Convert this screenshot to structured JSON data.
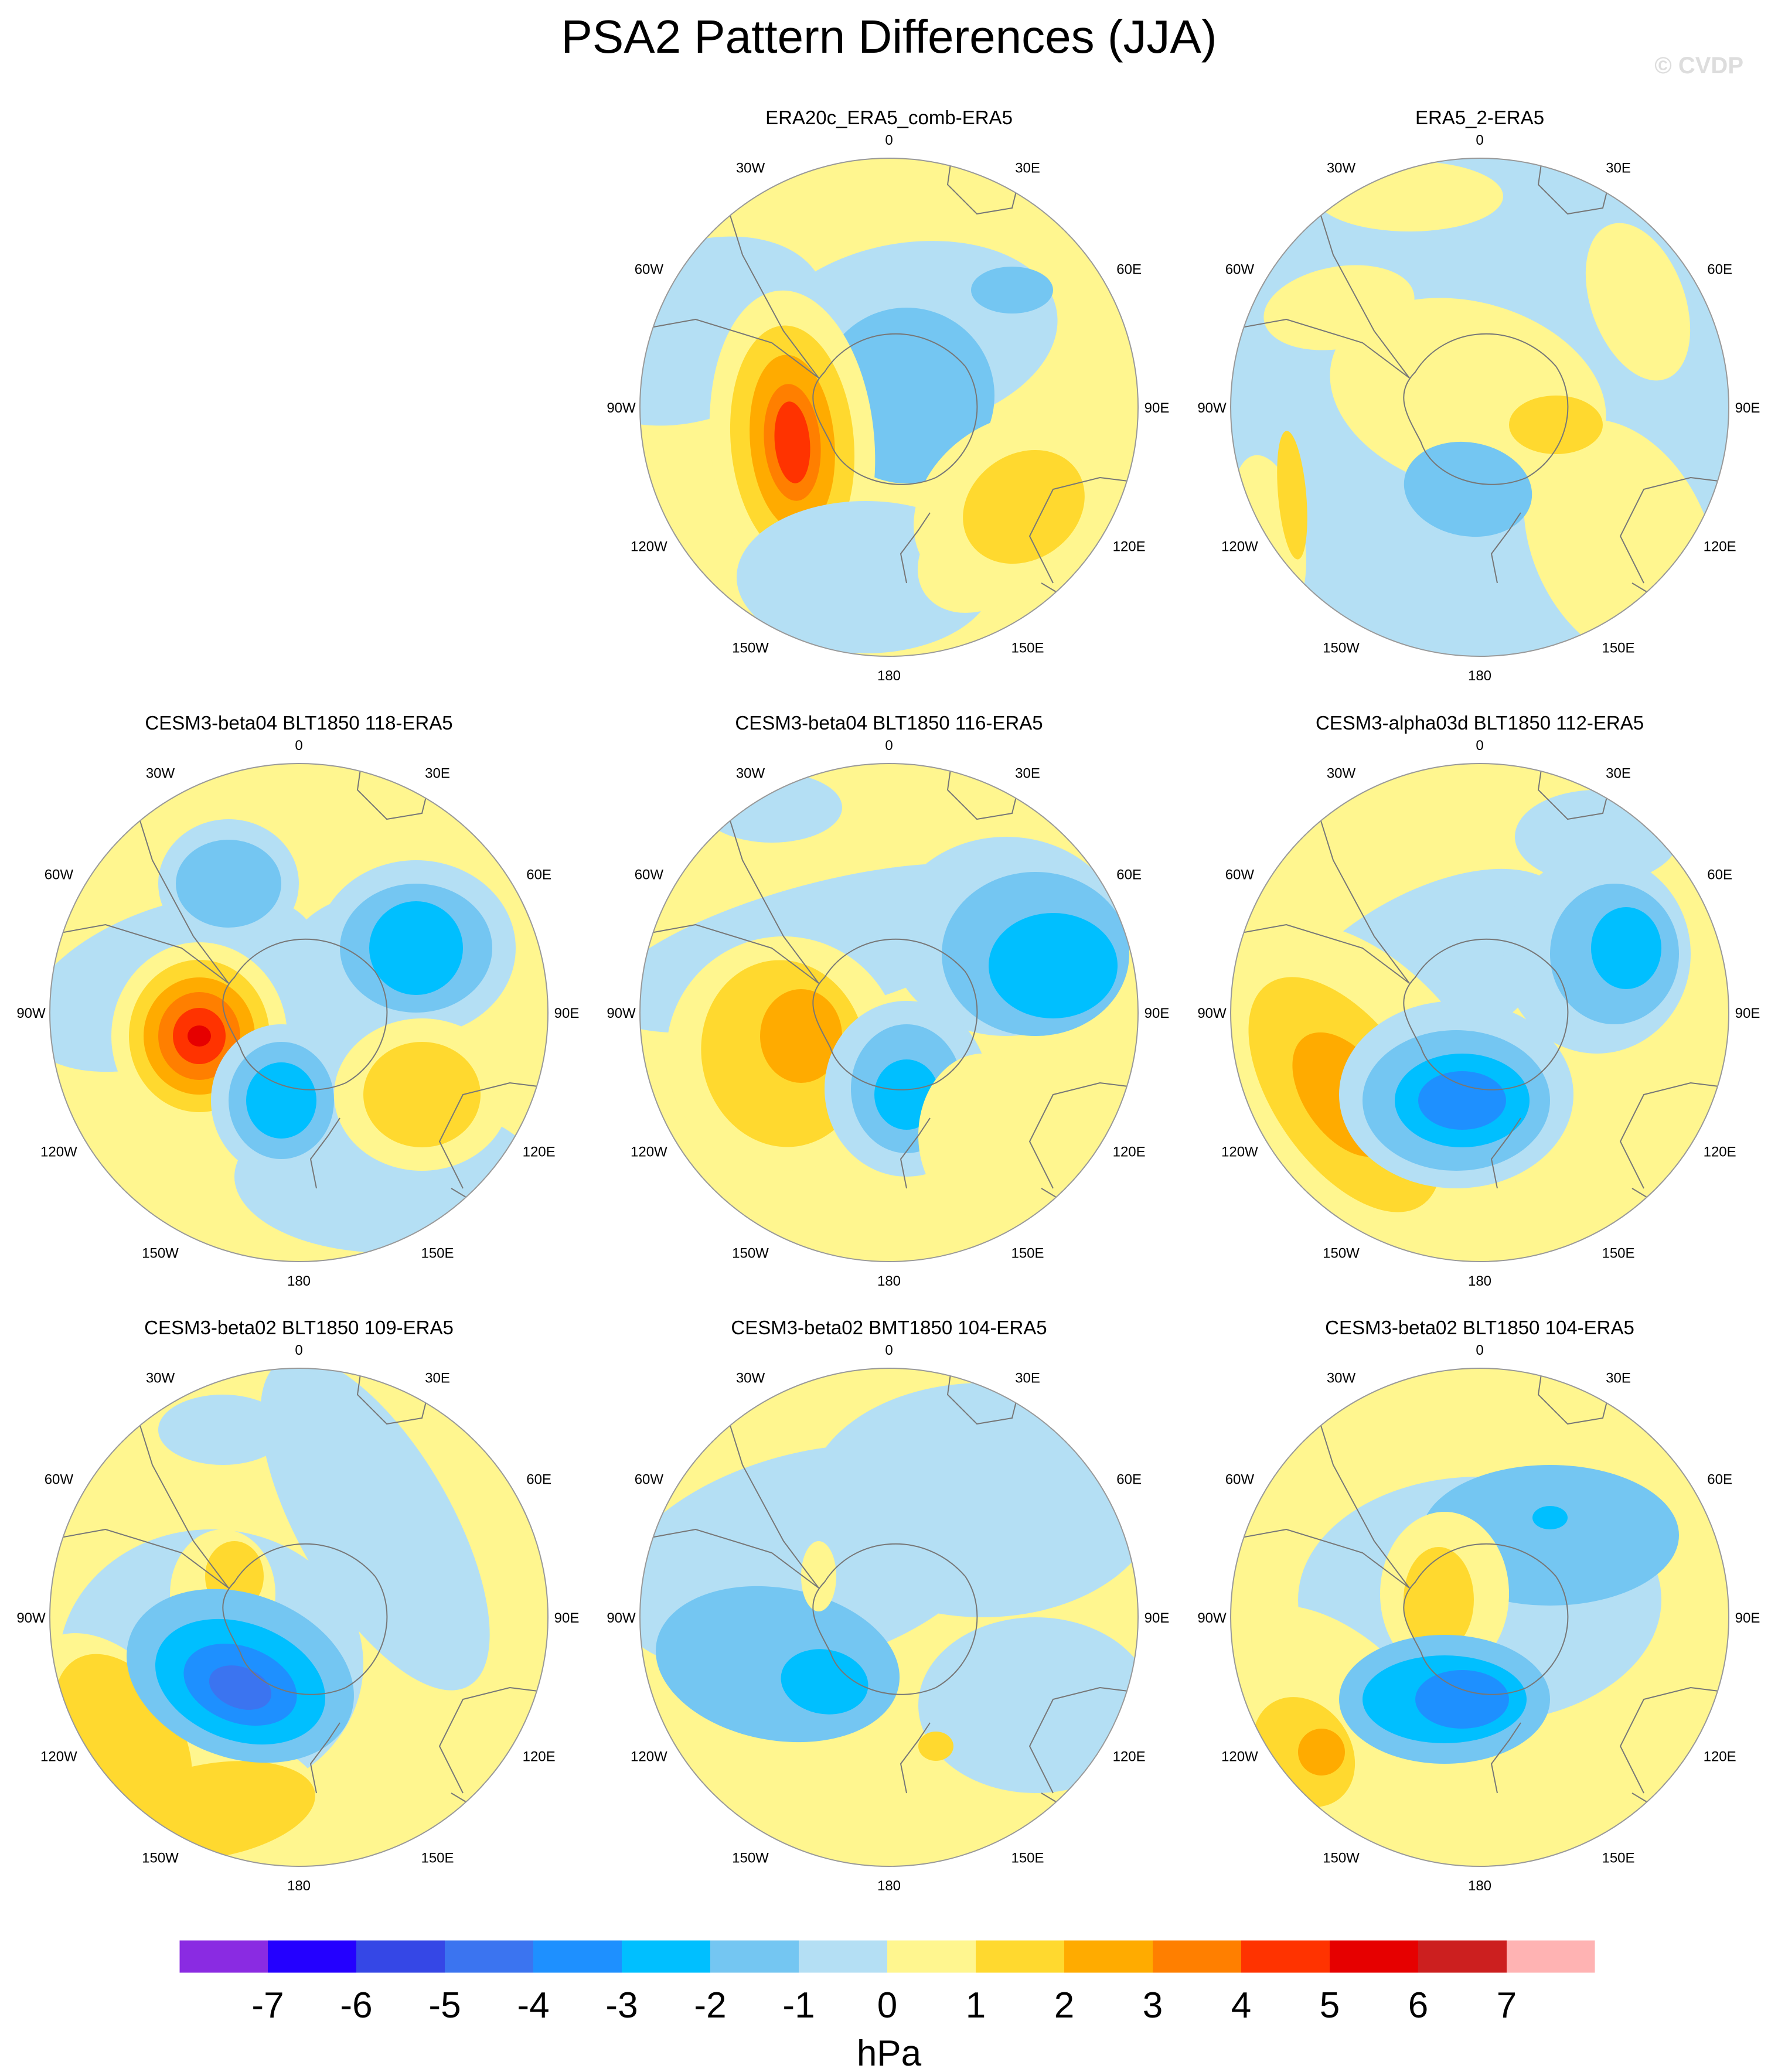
{
  "title": "PSA2 Pattern Differences (JJA)",
  "watermark": "© CVDP",
  "units": "hPa",
  "lon_labels": [
    "0",
    "30E",
    "60E",
    "90E",
    "120E",
    "150E",
    "180",
    "150W",
    "120W",
    "90W",
    "60W",
    "30W"
  ],
  "colorbar": {
    "colors": [
      "#8a2be2",
      "#2400ff",
      "#3547e6",
      "#3b74f0",
      "#1e90ff",
      "#00bfff",
      "#74c6f2",
      "#b4dff4",
      "#fff68f",
      "#ffd92f",
      "#ffab00",
      "#ff7f00",
      "#ff3300",
      "#e60000",
      "#cc1f1f",
      "#ffb3b3"
    ],
    "tick_labels": [
      "-7",
      "-6",
      "-5",
      "-4",
      "-3",
      "-2",
      "-1",
      "0",
      "1",
      "2",
      "3",
      "4",
      "5",
      "6",
      "7"
    ]
  },
  "panels": [
    {
      "title": "ERA20c_ERA5_comb-ERA5",
      "bg": "#fff68f"
    },
    {
      "title": "ERA5_2-ERA5",
      "bg": "#b4dff4"
    },
    {
      "title": "CESM3-beta04 BLT1850 118-ERA5",
      "bg": "#fff68f"
    },
    {
      "title": "CESM3-beta04 BLT1850 116-ERA5",
      "bg": "#fff68f"
    },
    {
      "title": "CESM3-alpha03d BLT1850 112-ERA5",
      "bg": "#fff68f"
    },
    {
      "title": "CESM3-beta02 BLT1850 109-ERA5",
      "bg": "#fff68f"
    },
    {
      "title": "CESM3-beta02 BMT1850 104-ERA5",
      "bg": "#fff68f"
    },
    {
      "title": "CESM3-beta02 BLT1850 104-ERA5",
      "bg": "#fff68f"
    }
  ]
}
